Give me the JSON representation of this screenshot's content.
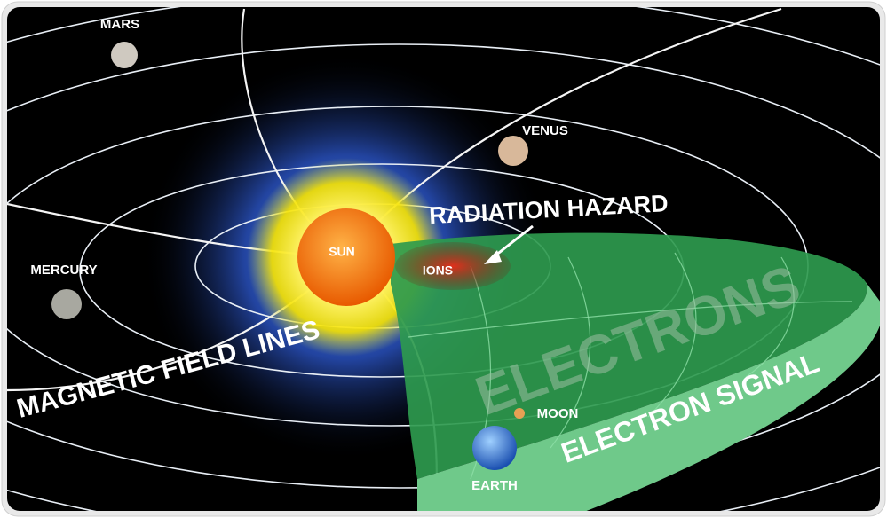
{
  "labels": {
    "mars": "MARS",
    "venus": "VENUS",
    "radiation_hazard": "RADIATION HAZARD",
    "sun": "SUN",
    "ions": "IONS",
    "mercury": "MERCURY",
    "magnetic_field_lines": "MAGNETIC FIELD LINES",
    "electrons": "ELECTRONS",
    "moon": "MOON",
    "electron_signal": "ELECTRON SIGNAL",
    "earth": "EARTH"
  }
}
